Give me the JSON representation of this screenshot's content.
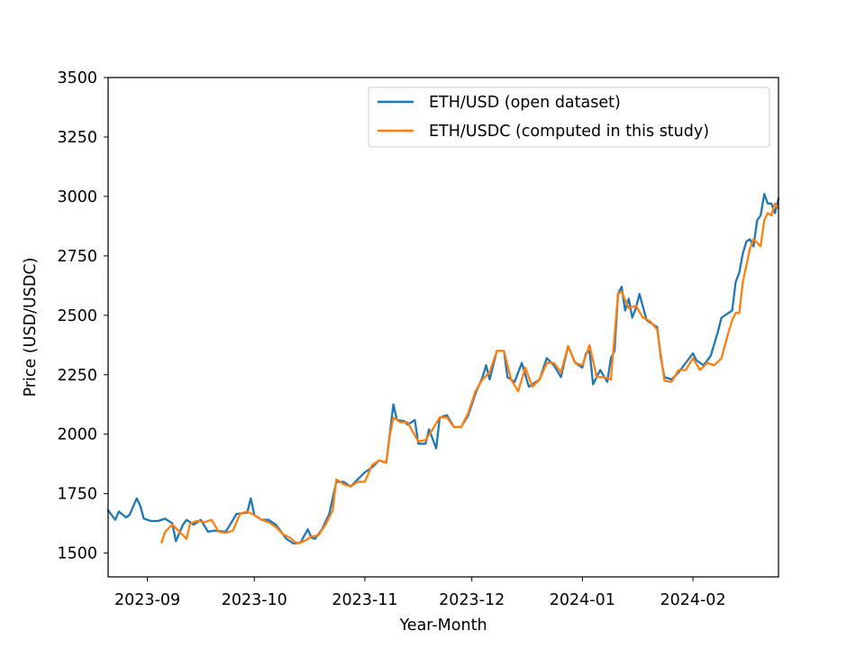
{
  "chart_data": {
    "type": "line",
    "title": "",
    "xlabel": "Year-Month",
    "ylabel": "Price (USD/USDC)",
    "xlim": [
      "2023-08-21",
      "2024-02-25"
    ],
    "ylim": [
      1400,
      3500
    ],
    "yticks": [
      1500,
      1750,
      2000,
      2250,
      2500,
      2750,
      3000,
      3250,
      3500
    ],
    "xticks": [
      {
        "label": "2023-09",
        "date": "2023-09-01"
      },
      {
        "label": "2023-10",
        "date": "2023-10-01"
      },
      {
        "label": "2023-11",
        "date": "2023-11-01"
      },
      {
        "label": "2023-12",
        "date": "2023-12-01"
      },
      {
        "label": "2024-01",
        "date": "2024-01-01"
      },
      {
        "label": "2024-02",
        "date": "2024-02-01"
      }
    ],
    "grid": false,
    "legend_position": "upper-right",
    "series": [
      {
        "name": "ETH/USD (open dataset)",
        "color": "#1f77b4",
        "x": [
          "2023-08-21",
          "2023-08-23",
          "2023-08-24",
          "2023-08-26",
          "2023-08-27",
          "2023-08-29",
          "2023-08-30",
          "2023-08-31",
          "2023-09-02",
          "2023-09-04",
          "2023-09-06",
          "2023-09-08",
          "2023-09-09",
          "2023-09-11",
          "2023-09-12",
          "2023-09-14",
          "2023-09-16",
          "2023-09-18",
          "2023-09-20",
          "2023-09-23",
          "2023-09-26",
          "2023-09-29",
          "2023-09-30",
          "2023-10-01",
          "2023-10-03",
          "2023-10-05",
          "2023-10-07",
          "2023-10-08",
          "2023-10-10",
          "2023-10-12",
          "2023-10-14",
          "2023-10-16",
          "2023-10-17",
          "2023-10-18",
          "2023-10-20",
          "2023-10-22",
          "2023-10-24",
          "2023-10-26",
          "2023-10-28",
          "2023-10-30",
          "2023-11-01",
          "2023-11-03",
          "2023-11-05",
          "2023-11-07",
          "2023-11-09",
          "2023-11-10",
          "2023-11-12",
          "2023-11-13",
          "2023-11-15",
          "2023-11-16",
          "2023-11-18",
          "2023-11-19",
          "2023-11-21",
          "2023-11-22",
          "2023-11-24",
          "2023-11-26",
          "2023-11-28",
          "2023-11-30",
          "2023-12-02",
          "2023-12-04",
          "2023-12-05",
          "2023-12-06",
          "2023-12-08",
          "2023-12-10",
          "2023-12-11",
          "2023-12-13",
          "2023-12-15",
          "2023-12-17",
          "2023-12-18",
          "2023-12-20",
          "2023-12-22",
          "2023-12-24",
          "2023-12-26",
          "2023-12-28",
          "2023-12-30",
          "2024-01-01",
          "2024-01-02",
          "2024-01-03",
          "2024-01-04",
          "2024-01-06",
          "2024-01-08",
          "2024-01-09",
          "2024-01-10",
          "2024-01-11",
          "2024-01-12",
          "2024-01-13",
          "2024-01-14",
          "2024-01-15",
          "2024-01-16",
          "2024-01-17",
          "2024-01-19",
          "2024-01-21",
          "2024-01-22",
          "2024-01-23",
          "2024-01-24",
          "2024-01-26",
          "2024-01-28",
          "2024-01-30",
          "2024-02-01",
          "2024-02-02",
          "2024-02-04",
          "2024-02-06",
          "2024-02-08",
          "2024-02-09",
          "2024-02-10",
          "2024-02-12",
          "2024-02-13",
          "2024-02-14",
          "2024-02-15",
          "2024-02-16",
          "2024-02-17",
          "2024-02-18",
          "2024-02-19",
          "2024-02-20",
          "2024-02-21",
          "2024-02-22",
          "2024-02-23",
          "2024-02-24",
          "2024-02-25"
        ],
        "y": [
          1680,
          1640,
          1675,
          1650,
          1660,
          1730,
          1700,
          1645,
          1635,
          1635,
          1645,
          1625,
          1550,
          1620,
          1640,
          1620,
          1640,
          1590,
          1595,
          1590,
          1665,
          1670,
          1730,
          1660,
          1640,
          1640,
          1620,
          1600,
          1560,
          1540,
          1545,
          1600,
          1565,
          1560,
          1600,
          1665,
          1800,
          1800,
          1780,
          1810,
          1840,
          1860,
          1890,
          1880,
          2125,
          2060,
          2055,
          2040,
          2060,
          1960,
          1960,
          2020,
          1940,
          2070,
          2080,
          2030,
          2030,
          2080,
          2170,
          2240,
          2290,
          2230,
          2350,
          2350,
          2240,
          2220,
          2300,
          2200,
          2210,
          2230,
          2320,
          2290,
          2240,
          2370,
          2300,
          2280,
          2340,
          2350,
          2210,
          2270,
          2220,
          2320,
          2350,
          2590,
          2620,
          2520,
          2570,
          2490,
          2530,
          2590,
          2480,
          2460,
          2450,
          2320,
          2240,
          2230,
          2260,
          2300,
          2340,
          2310,
          2290,
          2330,
          2430,
          2490,
          2500,
          2520,
          2640,
          2680,
          2760,
          2810,
          2820,
          2790,
          2900,
          2920,
          3010,
          2970,
          2970,
          2930,
          2990
        ]
      },
      {
        "name": "ETH/USDC (computed in this study)",
        "color": "#ff7f0e",
        "x": [
          "2023-09-05",
          "2023-09-06",
          "2023-09-08",
          "2023-09-12",
          "2023-09-13",
          "2023-09-15",
          "2023-09-17",
          "2023-09-19",
          "2023-09-21",
          "2023-09-23",
          "2023-09-25",
          "2023-09-27",
          "2023-09-29",
          "2023-10-01",
          "2023-10-03",
          "2023-10-05",
          "2023-10-07",
          "2023-10-09",
          "2023-10-11",
          "2023-10-13",
          "2023-10-15",
          "2023-10-17",
          "2023-10-19",
          "2023-10-21",
          "2023-10-23",
          "2023-10-24",
          "2023-10-26",
          "2023-10-28",
          "2023-10-30",
          "2023-11-01",
          "2023-11-03",
          "2023-11-05",
          "2023-11-07",
          "2023-11-08",
          "2023-11-09",
          "2023-11-11",
          "2023-11-13",
          "2023-11-15",
          "2023-11-16",
          "2023-11-18",
          "2023-11-20",
          "2023-11-22",
          "2023-11-24",
          "2023-11-26",
          "2023-11-28",
          "2023-11-30",
          "2023-12-02",
          "2023-12-04",
          "2023-12-06",
          "2023-12-08",
          "2023-12-10",
          "2023-12-12",
          "2023-12-14",
          "2023-12-16",
          "2023-12-18",
          "2023-12-20",
          "2023-12-22",
          "2023-12-24",
          "2023-12-26",
          "2023-12-28",
          "2023-12-30",
          "2024-01-01",
          "2024-01-03",
          "2024-01-05",
          "2024-01-07",
          "2024-01-09",
          "2024-01-11",
          "2024-01-12",
          "2024-01-14",
          "2024-01-16",
          "2024-01-18",
          "2024-01-20",
          "2024-01-22",
          "2024-01-24",
          "2024-01-26",
          "2024-01-28",
          "2024-01-30",
          "2024-02-01",
          "2024-02-03",
          "2024-02-05",
          "2024-02-07",
          "2024-02-09",
          "2024-02-11",
          "2024-02-12",
          "2024-02-13",
          "2024-02-14",
          "2024-02-15",
          "2024-02-17",
          "2024-02-18",
          "2024-02-20",
          "2024-02-21",
          "2024-02-22",
          "2024-02-23",
          "2024-02-24",
          "2024-02-25"
        ],
        "y": [
          1545,
          1590,
          1620,
          1560,
          1625,
          1635,
          1630,
          1640,
          1590,
          1585,
          1595,
          1665,
          1675,
          1660,
          1640,
          1630,
          1610,
          1580,
          1565,
          1540,
          1550,
          1570,
          1575,
          1620,
          1680,
          1810,
          1790,
          1780,
          1800,
          1800,
          1870,
          1890,
          1880,
          1995,
          2070,
          2050,
          2050,
          1995,
          1970,
          1975,
          2020,
          2070,
          2070,
          2030,
          2030,
          2090,
          2180,
          2230,
          2260,
          2350,
          2350,
          2230,
          2180,
          2280,
          2200,
          2230,
          2300,
          2300,
          2260,
          2370,
          2300,
          2290,
          2375,
          2240,
          2240,
          2230,
          2590,
          2600,
          2530,
          2540,
          2490,
          2475,
          2440,
          2225,
          2220,
          2270,
          2270,
          2320,
          2270,
          2300,
          2290,
          2320,
          2430,
          2480,
          2510,
          2510,
          2640,
          2780,
          2820,
          2790,
          2900,
          2930,
          2920,
          2970,
          2950
        ]
      }
    ]
  }
}
